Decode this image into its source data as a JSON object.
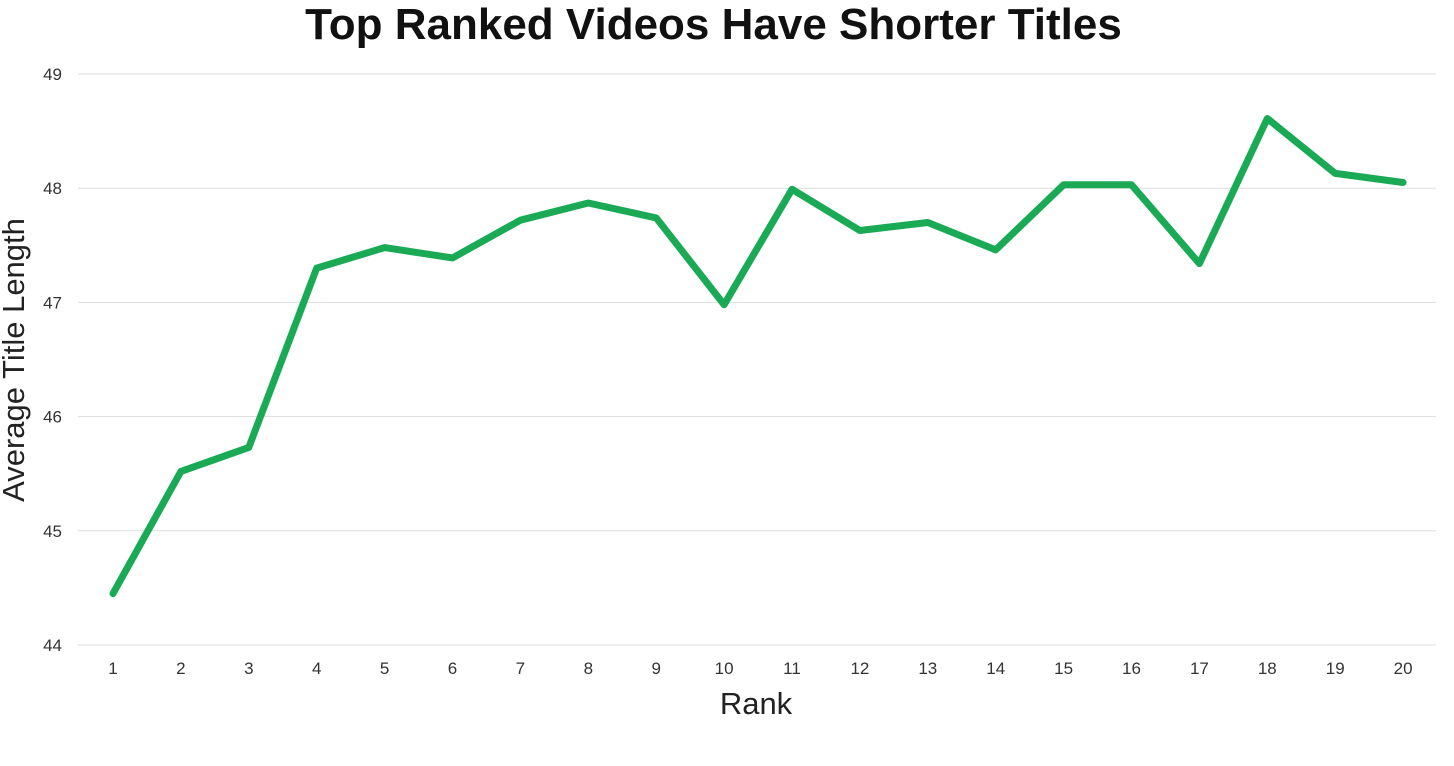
{
  "chart_data": {
    "type": "line",
    "title": "Top Ranked Videos Have Shorter Titles",
    "xlabel": "Rank",
    "ylabel": "Average Title Length",
    "categories": [
      "1",
      "2",
      "3",
      "4",
      "5",
      "6",
      "7",
      "8",
      "9",
      "10",
      "11",
      "12",
      "13",
      "14",
      "15",
      "16",
      "17",
      "18",
      "19",
      "20"
    ],
    "series": [
      {
        "values": [
          44.45,
          45.52,
          45.73,
          47.3,
          47.48,
          47.39,
          47.72,
          47.87,
          47.74,
          46.98,
          47.99,
          47.63,
          47.7,
          47.46,
          48.03,
          48.03,
          47.34,
          48.61,
          48.13,
          48.05
        ],
        "color": "#1aaa55"
      }
    ],
    "ylim": [
      44,
      49
    ],
    "yticks": [
      "44",
      "45",
      "46",
      "47",
      "48",
      "49"
    ],
    "grid": true,
    "legend": "none"
  },
  "colors": {
    "line": "#1aaa55",
    "grid": "#dddddd",
    "text": "#222222"
  }
}
